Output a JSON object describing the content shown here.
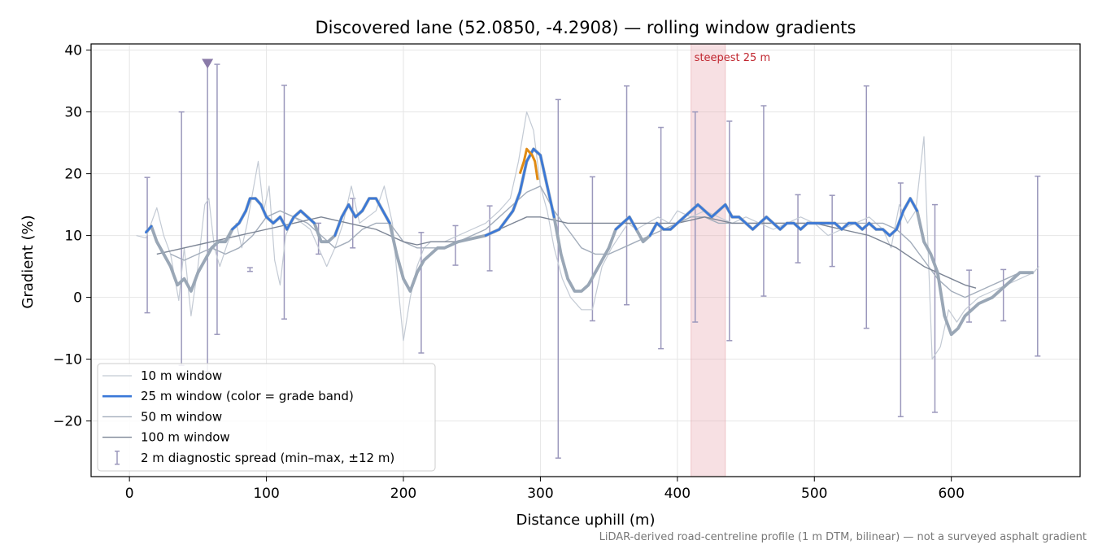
{
  "chart_data": {
    "type": "line",
    "title": "Discovered lane (52.0850, -4.2908) — rolling window gradients",
    "xlabel": "Distance uphill (m)",
    "ylabel": "Gradient (%)",
    "xlim": [
      -28,
      694
    ],
    "ylim": [
      -29,
      41
    ],
    "xticks": [
      0,
      100,
      200,
      300,
      400,
      500,
      600
    ],
    "yticks": [
      -20,
      -10,
      0,
      10,
      20,
      30,
      40
    ],
    "grid": true,
    "legend_position": "lower-left",
    "footnote": "LiDAR-derived road-centreline profile (1 m DTM, bilinear) — not a surveyed asphalt gradient",
    "steepest_band": {
      "x0": 410,
      "x1": 435,
      "label": "steepest 25 m",
      "color": "#e8a6ae"
    },
    "marker": {
      "x": 57,
      "y": 37.8,
      "color": "#8a7aa8"
    },
    "legend": [
      {
        "label": "10 m window",
        "color": "#c3cad4",
        "width": 1.2
      },
      {
        "label": "25 m window (color = grade band)",
        "color": "#3a78d8",
        "width": 2.6
      },
      {
        "label": "50 m window",
        "color": "#a3adbb",
        "width": 1.4
      },
      {
        "label": "100 m window",
        "color": "#7c8595",
        "width": 1.4
      },
      {
        "label": "2 m diagnostic spread (min–max, ±12 m)",
        "color": "#9b98bc",
        "errorbar": true
      }
    ],
    "series": [
      {
        "name": "10 m window",
        "color": "#c3cad4",
        "width": 1.2,
        "x": [
          5,
          12,
          20,
          25,
          30,
          36,
          40,
          45,
          50,
          55,
          58,
          62,
          66,
          72,
          78,
          82,
          86,
          90,
          94,
          98,
          102,
          106,
          110,
          114,
          120,
          126,
          132,
          138,
          144,
          150,
          156,
          162,
          168,
          174,
          180,
          186,
          192,
          196,
          200,
          205,
          210,
          215,
          220,
          230,
          240,
          250,
          260,
          270,
          278,
          284,
          290,
          295,
          300,
          305,
          310,
          316,
          322,
          330,
          338,
          345,
          352,
          358,
          364,
          370,
          378,
          386,
          394,
          400,
          410,
          420,
          430,
          440,
          450,
          460,
          470,
          480,
          490,
          500,
          510,
          520,
          530,
          540,
          550,
          556,
          562,
          568,
          574,
          580,
          586,
          592,
          598,
          604,
          610,
          620,
          630,
          640,
          650,
          660,
          664
        ],
        "y": [
          10,
          9.6,
          14.5,
          10,
          7,
          -0.5,
          8,
          -3,
          5,
          15,
          16,
          8,
          5,
          9,
          12,
          8,
          12,
          17,
          22,
          14,
          18,
          6,
          2,
          10,
          13,
          12,
          11,
          8,
          5,
          8,
          12,
          18,
          12,
          13,
          14,
          18,
          12,
          2,
          -7,
          0,
          5,
          8,
          9,
          9,
          10,
          11,
          12,
          14,
          16,
          22,
          30,
          27,
          18,
          14,
          8,
          3,
          0,
          -2,
          -2,
          5,
          8,
          10,
          12,
          11,
          12,
          13,
          12,
          14,
          13,
          14,
          13,
          12,
          13,
          12,
          11,
          12,
          13,
          12,
          10,
          11,
          12,
          13,
          11,
          8,
          15,
          12,
          14,
          26,
          -10,
          -8,
          -2,
          -4,
          -2,
          0,
          1,
          2,
          3,
          4,
          5
        ]
      },
      {
        "name": "50 m window",
        "color": "#a3adbb",
        "width": 1.4,
        "x": [
          30,
          40,
          50,
          60,
          70,
          80,
          90,
          100,
          110,
          120,
          130,
          140,
          150,
          160,
          170,
          180,
          190,
          200,
          210,
          220,
          230,
          240,
          250,
          260,
          270,
          280,
          290,
          300,
          310,
          320,
          330,
          340,
          350,
          360,
          370,
          380,
          390,
          400,
          410,
          420,
          430,
          440,
          450,
          460,
          470,
          480,
          490,
          500,
          510,
          520,
          530,
          540,
          550,
          560,
          570,
          580,
          590,
          600,
          610,
          620,
          630,
          640,
          650,
          660
        ],
        "y": [
          7,
          6,
          7,
          8,
          7,
          8,
          10,
          13,
          14,
          13,
          12,
          10,
          8,
          9,
          11,
          12,
          12,
          9,
          8,
          8,
          8,
          9,
          10,
          11,
          13,
          15,
          17,
          18,
          14,
          11,
          8,
          7,
          7,
          8,
          9,
          10,
          11,
          12,
          13,
          13,
          12,
          12,
          12,
          12,
          12,
          12,
          12,
          12,
          12,
          12,
          12,
          12,
          12,
          11,
          9,
          6,
          3,
          1,
          0,
          1,
          2,
          3,
          4,
          4
        ]
      },
      {
        "name": "100 m window",
        "color": "#7c8595",
        "width": 1.4,
        "x": [
          20,
          40,
          60,
          80,
          100,
          120,
          140,
          160,
          180,
          190,
          200,
          210,
          220,
          240,
          260,
          280,
          290,
          300,
          320,
          340,
          360,
          380,
          400,
          420,
          440,
          460,
          480,
          500,
          520,
          540,
          560,
          580,
          600,
          610,
          618
        ],
        "y": [
          7,
          8,
          9,
          10,
          11,
          12,
          13,
          12,
          11,
          10,
          9,
          8.5,
          9,
          9,
          10,
          12,
          13,
          13,
          12,
          12,
          12,
          12,
          12,
          13,
          12,
          12,
          12,
          12,
          11,
          10,
          8,
          5,
          3,
          2,
          1.5
        ]
      },
      {
        "name": "25 m window",
        "color": "#3a78d8",
        "accent": "#9aa7b6",
        "width": 2.6,
        "x": [
          12,
          16,
          20,
          25,
          30,
          35,
          40,
          45,
          50,
          55,
          60,
          65,
          70,
          75,
          80,
          85,
          88,
          92,
          96,
          100,
          105,
          110,
          115,
          120,
          125,
          130,
          135,
          140,
          145,
          150,
          155,
          160,
          165,
          170,
          175,
          180,
          185,
          190,
          195,
          200,
          205,
          210,
          215,
          220,
          225,
          230,
          240,
          250,
          260,
          270,
          280,
          285,
          290,
          295,
          300,
          305,
          310,
          315,
          320,
          325,
          330,
          335,
          340,
          345,
          350,
          355,
          360,
          365,
          370,
          375,
          380,
          385,
          390,
          395,
          400,
          405,
          410,
          415,
          420,
          425,
          430,
          435,
          440,
          445,
          450,
          455,
          460,
          465,
          470,
          475,
          480,
          485,
          490,
          495,
          500,
          505,
          510,
          515,
          520,
          525,
          530,
          535,
          540,
          545,
          550,
          555,
          560,
          565,
          570,
          575,
          580,
          585,
          590,
          595,
          600,
          605,
          610,
          620,
          630,
          640,
          650,
          660
        ],
        "y": [
          10.5,
          11.5,
          9,
          7,
          5,
          2,
          3,
          1,
          4,
          6,
          8,
          9,
          9,
          11,
          12,
          14,
          16,
          16,
          15,
          13,
          12,
          13,
          11,
          13,
          14,
          13,
          12,
          9,
          9,
          10,
          13,
          15,
          13,
          14,
          16,
          16,
          14,
          12,
          7,
          3,
          1,
          4,
          6,
          7,
          8,
          8,
          9,
          9.5,
          10,
          11,
          14,
          17,
          22,
          24,
          23,
          18,
          13,
          7,
          3,
          1,
          1,
          2,
          4,
          6,
          8,
          11,
          12,
          13,
          11,
          9,
          10,
          12,
          11,
          11,
          12,
          13,
          14,
          15,
          14,
          13,
          14,
          15,
          13,
          13,
          12,
          11,
          12,
          13,
          12,
          11,
          12,
          12,
          11,
          12,
          12,
          12,
          12,
          12,
          11,
          12,
          12,
          11,
          12,
          11,
          11,
          10,
          11,
          14,
          16,
          14,
          9,
          7,
          4,
          -3,
          -6,
          -5,
          -3,
          -1,
          0,
          2,
          4,
          4
        ]
      }
    ],
    "orange_segment": {
      "color": "#e08a12",
      "x": [
        285,
        288,
        290,
        292,
        294,
        296,
        298
      ],
      "y": [
        20,
        22,
        24,
        23.5,
        23,
        22,
        19
      ]
    },
    "errorbars": {
      "color": "#9b98bc",
      "x": [
        13,
        38,
        57,
        64,
        88,
        113,
        138,
        163,
        213,
        238,
        263,
        313,
        338,
        363,
        388,
        413,
        438,
        463,
        488,
        513,
        538,
        563,
        588,
        613,
        638,
        663
      ],
      "ymin": [
        -2.5,
        -11,
        -12,
        -6,
        4.2,
        -3.5,
        7,
        8,
        -9,
        5.2,
        4.3,
        -26,
        -3.8,
        -1.2,
        -8.3,
        -4,
        -7,
        0.2,
        5.6,
        5,
        -5,
        -19.3,
        -18.6,
        -4,
        -3.8,
        -9.5
      ],
      "ymax": [
        19.4,
        30,
        37.8,
        37.7,
        4.8,
        34.3,
        12,
        16,
        10.5,
        11.6,
        14.8,
        32,
        19.5,
        34.2,
        27.5,
        30,
        28.5,
        31,
        16.6,
        16.5,
        34.2,
        18.5,
        15,
        4.4,
        4.5,
        19.6
      ]
    }
  }
}
